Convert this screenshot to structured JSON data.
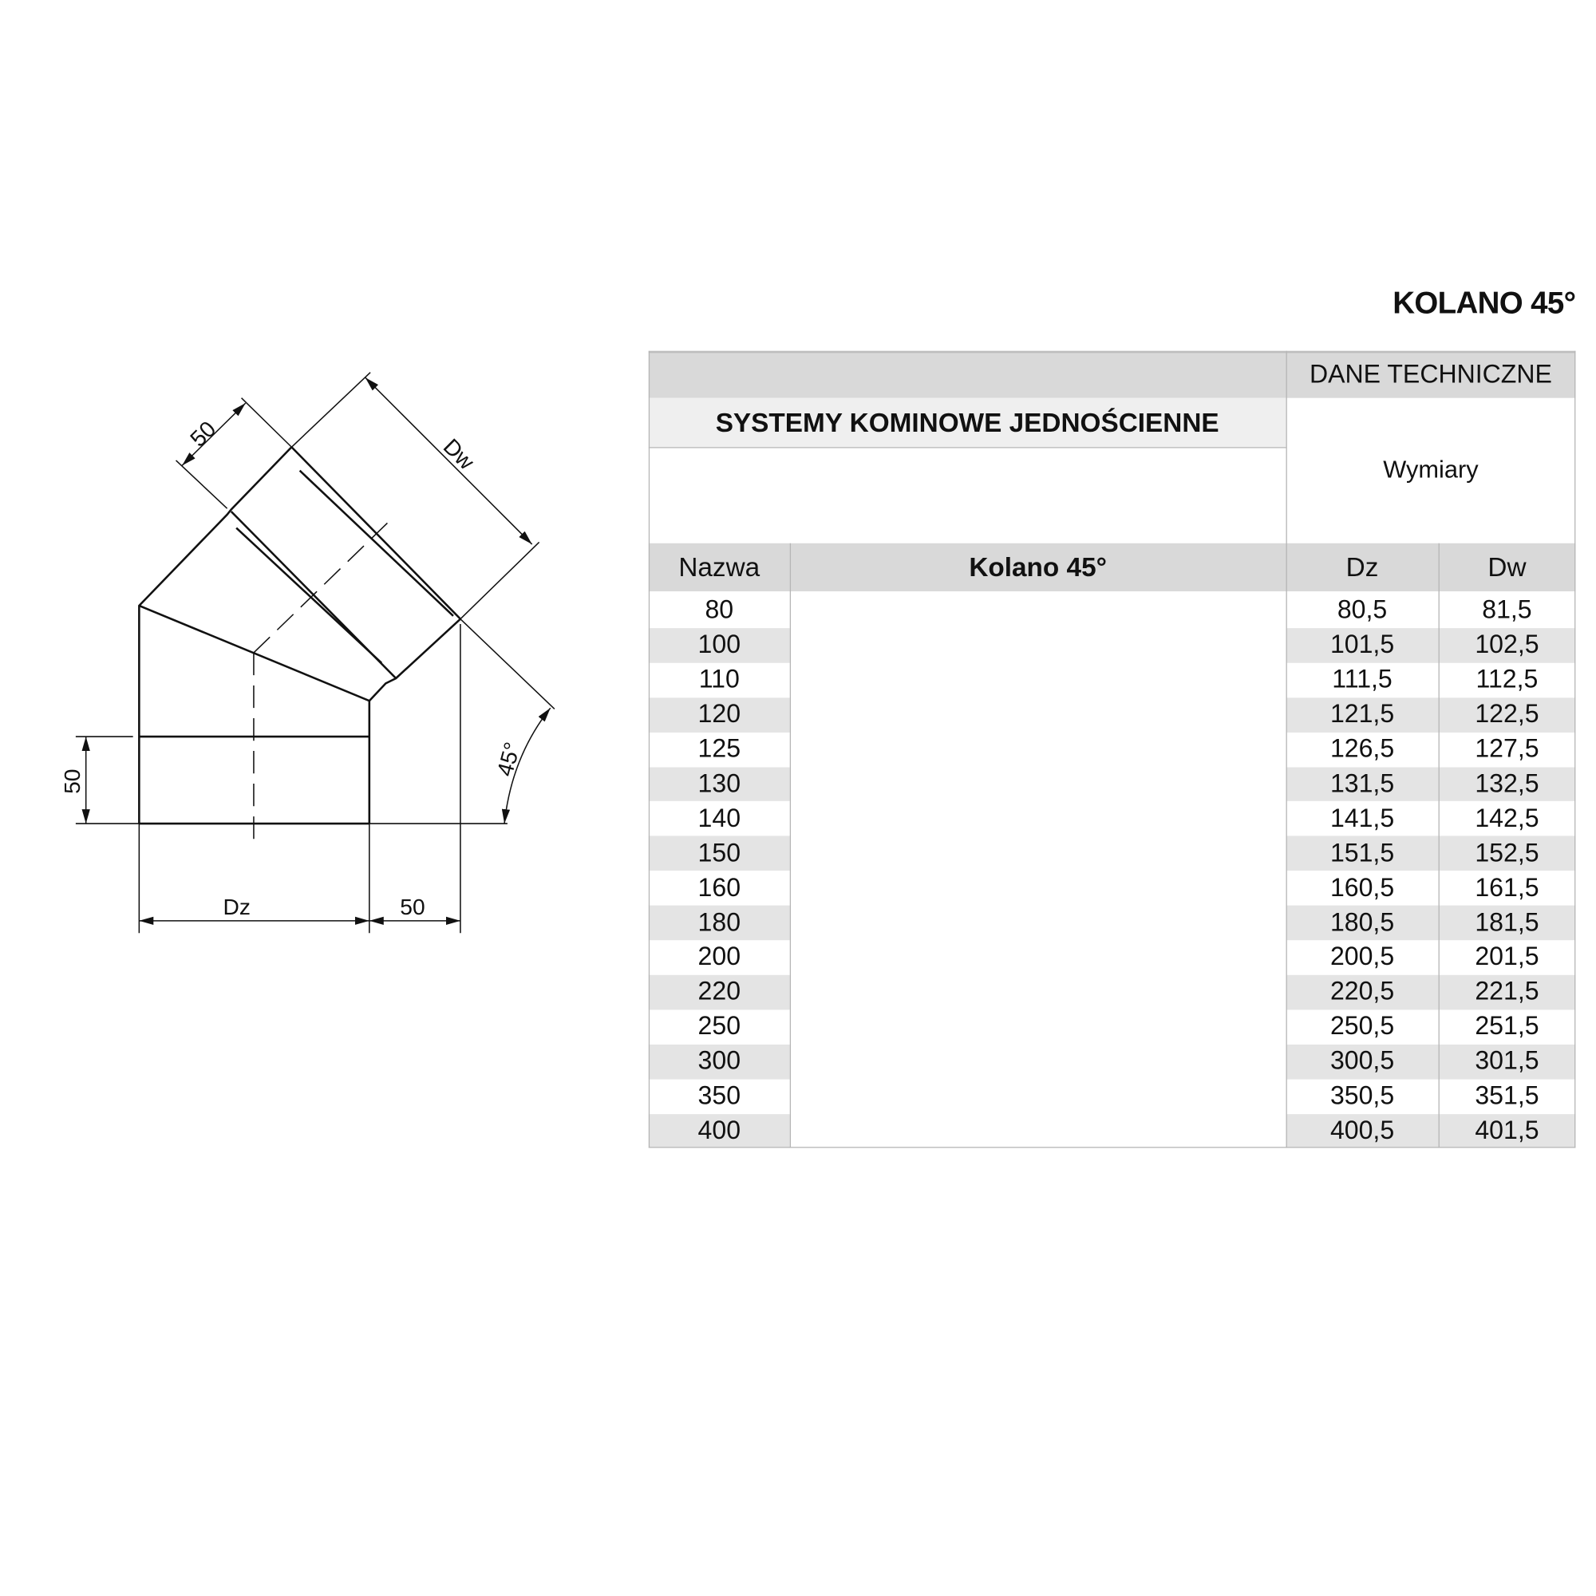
{
  "title": "KOLANO 45°",
  "table": {
    "top_header": "DANE TECHNICZNE",
    "system_label": "SYSTEMY KOMINOWE JEDNOŚCIENNE",
    "dimensions_label": "Wymiary",
    "columns": [
      "Nazwa",
      "Kolano 45°",
      "Dz",
      "Dw"
    ],
    "rows": [
      [
        "80",
        "80,5",
        "81,5"
      ],
      [
        "100",
        "101,5",
        "102,5"
      ],
      [
        "110",
        "111,5",
        "112,5"
      ],
      [
        "120",
        "121,5",
        "122,5"
      ],
      [
        "125",
        "126,5",
        "127,5"
      ],
      [
        "130",
        "131,5",
        "132,5"
      ],
      [
        "140",
        "141,5",
        "142,5"
      ],
      [
        "150",
        "151,5",
        "152,5"
      ],
      [
        "160",
        "160,5",
        "161,5"
      ],
      [
        "180",
        "180,5",
        "181,5"
      ],
      [
        "200",
        "200,5",
        "201,5"
      ],
      [
        "220",
        "220,5",
        "221,5"
      ],
      [
        "250",
        "250,5",
        "251,5"
      ],
      [
        "300",
        "300,5",
        "301,5"
      ],
      [
        "350",
        "350,5",
        "351,5"
      ],
      [
        "400",
        "400,5",
        "401,5"
      ]
    ]
  },
  "drawing": {
    "labels": {
      "dw": "Dw",
      "dz": "Dz",
      "top_50": "50",
      "left_50": "50",
      "bottom_50": "50",
      "angle": "45°"
    }
  }
}
